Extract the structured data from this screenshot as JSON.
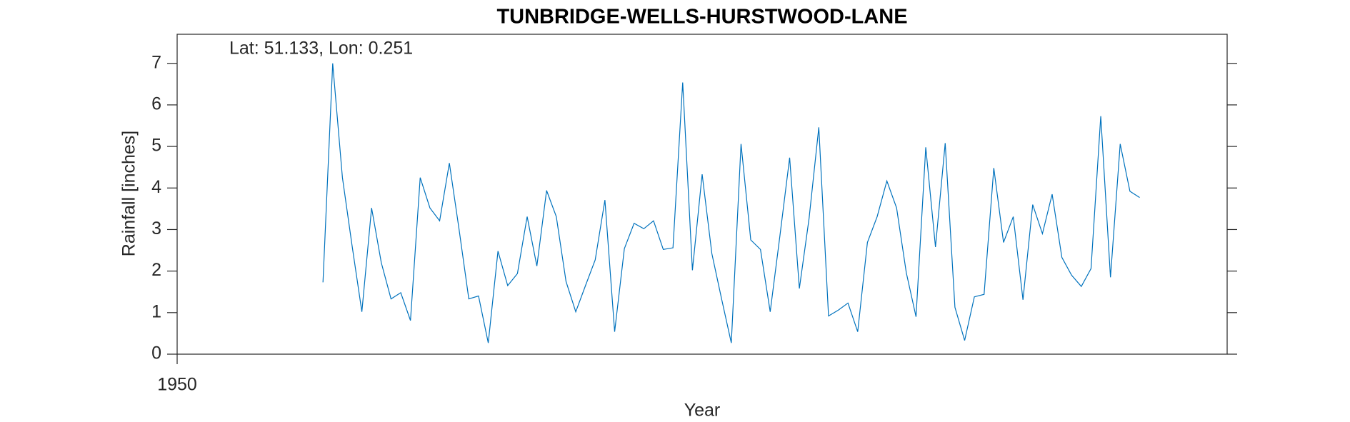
{
  "chart_data": {
    "type": "line",
    "title": "TUNBRIDGE-WELLS-HURSTWOOD-LANE",
    "annotation": "Lat: 51.133, Lon: 0.251",
    "xlabel": "Year",
    "ylabel": "Rainfall [inches]",
    "x": [
      1965,
      1966,
      1967,
      1968,
      1969,
      1970,
      1971,
      1972,
      1973,
      1974,
      1975,
      1976,
      1977,
      1978,
      1979,
      1980,
      1981,
      1982,
      1983,
      1984,
      1985,
      1986,
      1987,
      1988,
      1989,
      1990,
      1991,
      1992,
      1993,
      1994,
      1995,
      1996,
      1997,
      1998,
      1999,
      2000,
      2001,
      2002,
      2003,
      2004,
      2005,
      2006,
      2007,
      2008,
      2009,
      2010,
      2011,
      2012,
      2013,
      2014,
      2015,
      2016,
      2017,
      2018,
      2019,
      2020,
      2021,
      2022,
      2023,
      2024,
      2025,
      2026,
      2027,
      2028,
      2029,
      2030,
      2031,
      2032,
      2033,
      2034,
      2035,
      2036,
      2037,
      2038,
      2039,
      2040,
      2041,
      2042,
      2043,
      2044,
      2045,
      2046,
      2047,
      2048,
      2049
    ],
    "series": [
      {
        "name": "Rainfall",
        "color": "#0072bd",
        "values": [
          1.73,
          7.0,
          4.25,
          2.6,
          1.02,
          3.52,
          2.2,
          1.33,
          1.48,
          0.81,
          4.25,
          3.52,
          3.21,
          4.6,
          3.0,
          1.33,
          1.4,
          0.27,
          2.48,
          1.65,
          1.94,
          3.31,
          2.12,
          3.94,
          3.31,
          1.75,
          1.02,
          1.65,
          2.27,
          3.71,
          0.54,
          2.54,
          3.15,
          3.02,
          3.21,
          2.52,
          2.56,
          6.54,
          2.02,
          4.33,
          2.42,
          1.33,
          0.27,
          5.06,
          2.75,
          2.52,
          1.02,
          2.85,
          4.73,
          1.58,
          3.27,
          5.46,
          0.92,
          1.06,
          1.23,
          0.54,
          2.69,
          3.31,
          4.17,
          3.52,
          1.96,
          0.9,
          4.98,
          2.58,
          5.08,
          1.13,
          0.33,
          1.38,
          1.44,
          4.48,
          2.69,
          3.31,
          1.31,
          3.6,
          2.9,
          3.85,
          2.33,
          1.9,
          1.63,
          2.06,
          5.73,
          1.85,
          5.06,
          3.92,
          3.77
        ]
      }
    ],
    "xlim": [
      1950,
      2058
    ],
    "xticks": [
      1950
    ],
    "ylim": [
      0,
      7.7
    ],
    "yticks": [
      0,
      1,
      2,
      3,
      4,
      5,
      6,
      7
    ]
  }
}
